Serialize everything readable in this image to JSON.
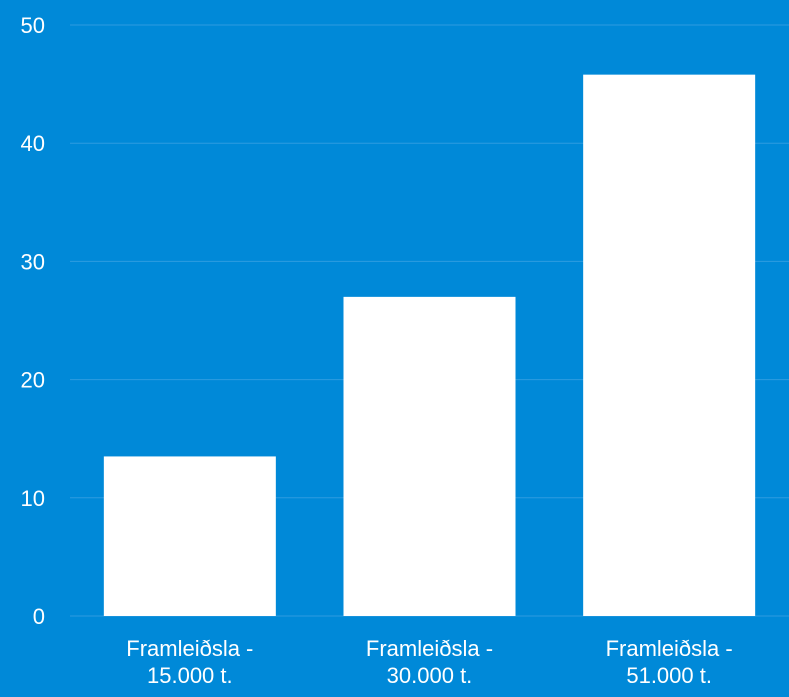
{
  "chart_data": {
    "type": "bar",
    "categories": [
      [
        "Framleiðsla -",
        "15.000 t."
      ],
      [
        "Framleiðsla -",
        "30.000 t."
      ],
      [
        "Framleiðsla -",
        "51.000 t."
      ]
    ],
    "values": [
      13.5,
      27,
      45.8
    ],
    "title": "",
    "xlabel": "",
    "ylabel": "",
    "ylim": [
      0,
      50
    ],
    "yticks": [
      0,
      10,
      20,
      30,
      40,
      50
    ],
    "grid": true,
    "legend": "none"
  },
  "colors": {
    "background": "#0089D8",
    "bar": "#FFFFFF",
    "gridline": "#2E9CE0",
    "text": "#FFFFFF"
  }
}
